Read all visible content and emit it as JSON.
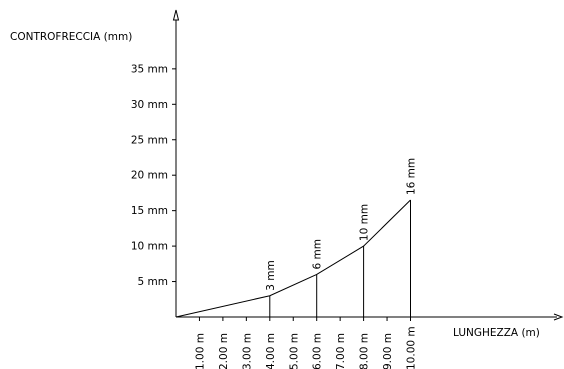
{
  "chart_data": {
    "type": "line",
    "ylabel": "CONTROFRECCIA (mm)",
    "xlabel": "LUNGHEZZA (m)",
    "ylim": [
      0,
      40
    ],
    "xlim": [
      0,
      11
    ],
    "y_ticks": [
      5,
      10,
      15,
      20,
      25,
      30,
      35
    ],
    "y_tick_labels": [
      "5  mm",
      "10  mm",
      "15  mm",
      "20  mm",
      "25  mm",
      "30  mm",
      "35  mm"
    ],
    "x_ticks": [
      1,
      2,
      3,
      4,
      5,
      6,
      7,
      8,
      9,
      10
    ],
    "x_tick_labels": [
      "1.00 m",
      "2.00 m",
      "3.00 m",
      "4.00 m",
      "5.00 m",
      "6.00 m",
      "7.00 m",
      "8.00 m",
      "9.00 m",
      "10.00 m"
    ],
    "series": [
      {
        "x": [
          0,
          4,
          6,
          8,
          10
        ],
        "y": [
          0,
          3,
          6,
          10,
          16.5
        ]
      }
    ],
    "annotations": [
      {
        "x": 4,
        "y": 3,
        "text": "3 mm"
      },
      {
        "x": 6,
        "y": 6,
        "text": "6 mm"
      },
      {
        "x": 8,
        "y": 10,
        "text": "10 mm"
      },
      {
        "x": 10,
        "y": 16.5,
        "text": "16 mm"
      }
    ],
    "grid": false
  }
}
